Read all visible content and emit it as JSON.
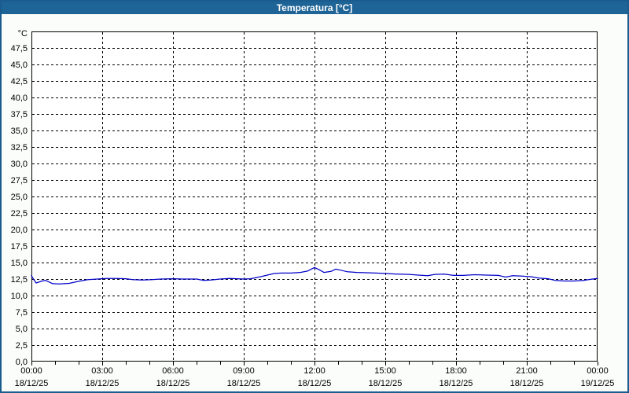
{
  "window": {
    "title": "Temperatura [°C]"
  },
  "colors": {
    "titlebar_bg": "#1e6496",
    "titlebar_text": "#ffffff",
    "window_border": "#1b5c8e",
    "background": "#fbfdfa",
    "plot_bg": "#ffffff",
    "grid": "#000000",
    "axis": "#000000",
    "label_text": "#000000",
    "line": "#0000c8"
  },
  "chart_data": {
    "type": "line",
    "title": "Temperatura [°C]",
    "y_unit_label": "°C",
    "ylim": [
      0,
      50
    ],
    "ytick_step": 2.5,
    "ytick_labels": [
      "0,0",
      "2,5",
      "5,0",
      "7,5",
      "10,0",
      "12,5",
      "15,0",
      "17,5",
      "20,0",
      "22,5",
      "25,0",
      "27,5",
      "30,0",
      "32,5",
      "35,0",
      "37,5",
      "40,0",
      "42,5",
      "45,0",
      "47,5"
    ],
    "x_hours_span": 24,
    "grid_hours": 3,
    "minor_tick_hours": 1,
    "grid_style": "dashed",
    "legend": "none",
    "xticks": [
      {
        "hour": 0,
        "time": "00:00",
        "date": "18/12/25"
      },
      {
        "hour": 3,
        "time": "03:00",
        "date": "18/12/25"
      },
      {
        "hour": 6,
        "time": "06:00",
        "date": "18/12/25"
      },
      {
        "hour": 9,
        "time": "09:00",
        "date": "18/12/25"
      },
      {
        "hour": 12,
        "time": "12:00",
        "date": "18/12/25"
      },
      {
        "hour": 15,
        "time": "15:00",
        "date": "18/12/25"
      },
      {
        "hour": 18,
        "time": "18:00",
        "date": "18/12/25"
      },
      {
        "hour": 21,
        "time": "21:00",
        "date": "18/12/25"
      },
      {
        "hour": 24,
        "time": "00:00",
        "date": "19/12/25"
      }
    ],
    "series": [
      {
        "name": "Temperatura",
        "color": "#0000c8",
        "points": [
          [
            0.0,
            13.0
          ],
          [
            0.1,
            12.4
          ],
          [
            0.2,
            11.9
          ],
          [
            0.45,
            12.2
          ],
          [
            0.6,
            12.3
          ],
          [
            0.9,
            11.8
          ],
          [
            1.2,
            11.75
          ],
          [
            1.6,
            11.85
          ],
          [
            2.0,
            12.15
          ],
          [
            2.4,
            12.4
          ],
          [
            2.8,
            12.5
          ],
          [
            3.2,
            12.6
          ],
          [
            3.6,
            12.6
          ],
          [
            4.0,
            12.55
          ],
          [
            4.3,
            12.4
          ],
          [
            4.7,
            12.35
          ],
          [
            5.1,
            12.4
          ],
          [
            5.5,
            12.5
          ],
          [
            6.0,
            12.55
          ],
          [
            6.4,
            12.5
          ],
          [
            7.0,
            12.5
          ],
          [
            7.3,
            12.3
          ],
          [
            7.6,
            12.35
          ],
          [
            8.0,
            12.5
          ],
          [
            8.4,
            12.6
          ],
          [
            8.7,
            12.55
          ],
          [
            9.0,
            12.5
          ],
          [
            9.3,
            12.55
          ],
          [
            9.7,
            12.85
          ],
          [
            10.0,
            13.1
          ],
          [
            10.3,
            13.35
          ],
          [
            10.6,
            13.4
          ],
          [
            11.0,
            13.4
          ],
          [
            11.4,
            13.5
          ],
          [
            11.7,
            13.7
          ],
          [
            12.0,
            14.25
          ],
          [
            12.2,
            13.9
          ],
          [
            12.4,
            13.5
          ],
          [
            12.7,
            13.65
          ],
          [
            12.9,
            14.0
          ],
          [
            13.1,
            13.85
          ],
          [
            13.4,
            13.6
          ],
          [
            13.8,
            13.5
          ],
          [
            14.2,
            13.45
          ],
          [
            14.6,
            13.4
          ],
          [
            15.0,
            13.35
          ],
          [
            15.5,
            13.25
          ],
          [
            16.0,
            13.2
          ],
          [
            16.4,
            13.1
          ],
          [
            16.8,
            13.0
          ],
          [
            17.1,
            13.2
          ],
          [
            17.5,
            13.25
          ],
          [
            17.9,
            13.05
          ],
          [
            18.3,
            13.05
          ],
          [
            18.8,
            13.15
          ],
          [
            19.3,
            13.1
          ],
          [
            19.8,
            13.05
          ],
          [
            20.1,
            12.8
          ],
          [
            20.4,
            13.0
          ],
          [
            20.8,
            12.95
          ],
          [
            21.2,
            12.85
          ],
          [
            21.5,
            12.65
          ],
          [
            21.9,
            12.55
          ],
          [
            22.2,
            12.3
          ],
          [
            22.6,
            12.2
          ],
          [
            23.0,
            12.2
          ],
          [
            23.4,
            12.3
          ],
          [
            23.7,
            12.45
          ],
          [
            24.0,
            12.6
          ]
        ]
      }
    ]
  }
}
